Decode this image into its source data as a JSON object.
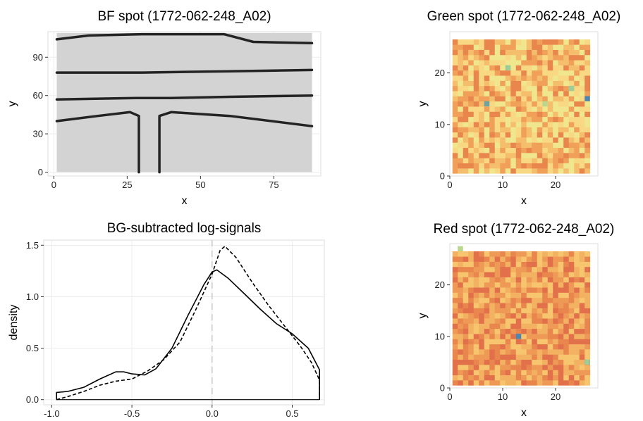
{
  "chart_data": [
    {
      "type": "image",
      "title": "BF spot (1772-062-248_A02)",
      "xlabel": "x",
      "ylabel": "y",
      "xlim": [
        -2,
        91
      ],
      "ylim": [
        -3,
        110
      ],
      "x_ticks": [
        0,
        25,
        50,
        75
      ],
      "y_ticks": [
        0,
        30,
        60,
        90
      ],
      "grid": true,
      "image": {
        "description_colors": [
          "#d3d3d3",
          "#232323"
        ],
        "extent_x": [
          1,
          88
        ],
        "extent_y": [
          0,
          109
        ],
        "features": [
          {
            "kind": "line",
            "points": [
              [
                1,
                104
              ],
              [
                12,
                107
              ],
              [
                30,
                108
              ],
              [
                58,
                108
              ],
              [
                68,
                102
              ],
              [
                88,
                101
              ]
            ]
          },
          {
            "kind": "line",
            "points": [
              [
                1,
                78
              ],
              [
                30,
                78
              ],
              [
                60,
                79
              ],
              [
                88,
                80
              ]
            ]
          },
          {
            "kind": "line",
            "points": [
              [
                1,
                57
              ],
              [
                28,
                58
              ],
              [
                40,
                58
              ],
              [
                60,
                59
              ],
              [
                88,
                60
              ]
            ]
          },
          {
            "kind": "line",
            "points": [
              [
                1,
                40
              ],
              [
                15,
                44
              ],
              [
                26,
                47
              ],
              [
                29,
                44
              ],
              [
                29,
                0
              ]
            ]
          },
          {
            "kind": "line",
            "points": [
              [
                36,
                0
              ],
              [
                36,
                44
              ],
              [
                40,
                47
              ],
              [
                60,
                44
              ],
              [
                88,
                36
              ]
            ]
          }
        ]
      }
    },
    {
      "type": "heatmap",
      "title": "Green spot (1772-062-248_A02)",
      "xlabel": "x",
      "ylabel": "y",
      "xlim": [
        0,
        28
      ],
      "ylim": [
        0,
        28
      ],
      "x_ticks": [
        0,
        10,
        20
      ],
      "y_ticks": [
        0,
        10,
        20
      ],
      "grid": false,
      "size": [
        26,
        26
      ],
      "seed": 11,
      "palette": [
        "#e8864d",
        "#f0a058",
        "#f5be6d",
        "#f8d882",
        "#f0e68e"
      ],
      "highlights": [
        {
          "x": 7,
          "y": 14,
          "color": "#6aa5a0"
        },
        {
          "x": 26,
          "y": 15,
          "color": "#4f86ad"
        },
        {
          "x": 11,
          "y": 21,
          "color": "#9ccc98"
        },
        {
          "x": 18,
          "y": 14,
          "color": "#b9d88e"
        },
        {
          "x": 23,
          "y": 17,
          "color": "#9ccc98"
        }
      ]
    },
    {
      "type": "line",
      "title": "BG-subtracted log-signals",
      "xlabel": "",
      "ylabel": "density",
      "xlim": [
        -1.05,
        0.7
      ],
      "ylim": [
        -0.05,
        1.55
      ],
      "x_ticks": [
        -1.0,
        -0.5,
        0.0,
        0.5
      ],
      "x_tick_labels": [
        "-1.0",
        "-0.5",
        "0.0",
        "0.5"
      ],
      "y_ticks": [
        0.0,
        0.5,
        1.0,
        1.5
      ],
      "y_tick_labels": [
        "0.0",
        "0.5",
        "1.0",
        "1.5"
      ],
      "grid": true,
      "vline": 0.0,
      "series": [
        {
          "style": "solid",
          "points": [
            [
              -0.97,
              0.0
            ],
            [
              -0.97,
              0.07
            ],
            [
              -0.9,
              0.08
            ],
            [
              -0.8,
              0.12
            ],
            [
              -0.7,
              0.2
            ],
            [
              -0.6,
              0.27
            ],
            [
              -0.55,
              0.27
            ],
            [
              -0.5,
              0.25
            ],
            [
              -0.42,
              0.24
            ],
            [
              -0.35,
              0.3
            ],
            [
              -0.25,
              0.5
            ],
            [
              -0.15,
              0.82
            ],
            [
              -0.05,
              1.12
            ],
            [
              0.0,
              1.24
            ],
            [
              0.03,
              1.26
            ],
            [
              0.1,
              1.18
            ],
            [
              0.2,
              1.03
            ],
            [
              0.3,
              0.88
            ],
            [
              0.4,
              0.74
            ],
            [
              0.5,
              0.64
            ],
            [
              0.6,
              0.5
            ],
            [
              0.67,
              0.29
            ],
            [
              0.67,
              0.0
            ]
          ]
        },
        {
          "style": "dashed",
          "points": [
            [
              -0.97,
              0.0
            ],
            [
              -0.9,
              0.03
            ],
            [
              -0.8,
              0.08
            ],
            [
              -0.7,
              0.14
            ],
            [
              -0.6,
              0.18
            ],
            [
              -0.5,
              0.2
            ],
            [
              -0.4,
              0.28
            ],
            [
              -0.3,
              0.39
            ],
            [
              -0.2,
              0.56
            ],
            [
              -0.1,
              0.88
            ],
            [
              0.0,
              1.22
            ],
            [
              0.05,
              1.45
            ],
            [
              0.08,
              1.49
            ],
            [
              0.15,
              1.38
            ],
            [
              0.25,
              1.14
            ],
            [
              0.35,
              0.92
            ],
            [
              0.45,
              0.72
            ],
            [
              0.55,
              0.52
            ],
            [
              0.62,
              0.36
            ],
            [
              0.67,
              0.19
            ],
            [
              0.67,
              0.0
            ]
          ]
        }
      ]
    },
    {
      "type": "heatmap",
      "title": "Red spot (1772-062-248_A02)",
      "xlabel": "x",
      "ylabel": "y",
      "xlim": [
        0,
        28
      ],
      "ylim": [
        0,
        28
      ],
      "x_ticks": [
        0,
        10,
        20
      ],
      "y_ticks": [
        0,
        10,
        20
      ],
      "grid": false,
      "size": [
        26,
        26
      ],
      "seed": 37,
      "palette": [
        "#e2704a",
        "#e8864d",
        "#ee9a56",
        "#f3b162",
        "#f7c56e"
      ],
      "highlights": [
        {
          "x": 13,
          "y": 10,
          "color": "#4f86ad"
        },
        {
          "x": 26,
          "y": 5,
          "color": "#9ccc98"
        },
        {
          "x": 2,
          "y": 27,
          "color": "#b9d88e"
        }
      ]
    }
  ]
}
